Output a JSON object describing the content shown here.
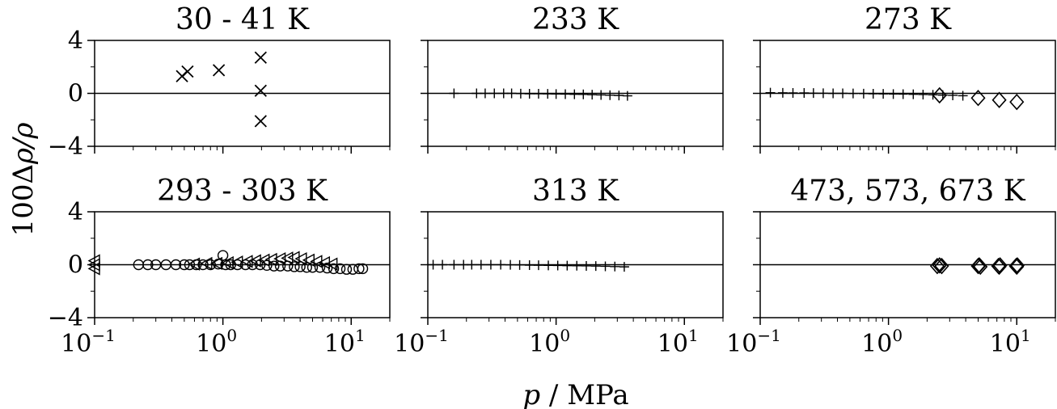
{
  "figure": {
    "xlabel": {
      "symbol": "p",
      "unit": "MPa"
    },
    "ylabel": {
      "prefix": "100Δ",
      "expr": "ρ/ρ"
    }
  },
  "chart_data": [
    {
      "type": "scatter",
      "title": "30 - 41 K",
      "xscale": "log",
      "xlim": [
        0.1,
        20
      ],
      "ylim": [
        -4,
        4
      ],
      "xticks": [
        0.1,
        1,
        10
      ],
      "yticks": [
        4,
        0,
        -4
      ],
      "show_xtick_labels": false,
      "show_ytick_labels": true,
      "zero_line": true,
      "series": [
        {
          "marker": "x",
          "points": [
            [
              0.48,
              1.3
            ],
            [
              0.53,
              1.65
            ],
            [
              0.93,
              1.75
            ],
            [
              1.97,
              2.7
            ],
            [
              1.97,
              0.2
            ],
            [
              1.97,
              -2.1
            ]
          ]
        }
      ]
    },
    {
      "type": "scatter",
      "title": "233 K",
      "xscale": "log",
      "xlim": [
        0.1,
        20
      ],
      "ylim": [
        -4,
        4
      ],
      "xticks": [
        0.1,
        1,
        10
      ],
      "yticks": [
        4,
        0,
        -4
      ],
      "show_xtick_labels": false,
      "show_ytick_labels": false,
      "zero_line": true,
      "series": [
        {
          "marker": "+",
          "points": [
            [
              0.16,
              0.0
            ],
            [
              0.24,
              0.0
            ],
            [
              0.28,
              0.0
            ],
            [
              0.33,
              0.0
            ],
            [
              0.39,
              0.0
            ],
            [
              0.45,
              0.0
            ],
            [
              0.53,
              -0.02
            ],
            [
              0.62,
              -0.03
            ],
            [
              0.73,
              -0.03
            ],
            [
              0.86,
              -0.04
            ],
            [
              1.0,
              -0.05
            ],
            [
              1.18,
              -0.06
            ],
            [
              1.39,
              -0.07
            ],
            [
              1.63,
              -0.08
            ],
            [
              1.91,
              -0.1
            ],
            [
              2.24,
              -0.12
            ],
            [
              2.63,
              -0.14
            ],
            [
              3.09,
              -0.16
            ],
            [
              3.6,
              -0.19
            ]
          ]
        }
      ]
    },
    {
      "type": "scatter",
      "title": "273 K",
      "xscale": "log",
      "xlim": [
        0.1,
        20
      ],
      "ylim": [
        -4,
        4
      ],
      "xticks": [
        0.1,
        1,
        10
      ],
      "yticks": [
        4,
        0,
        -4
      ],
      "show_xtick_labels": false,
      "show_ytick_labels": false,
      "zero_line": true,
      "series": [
        {
          "marker": "+",
          "points": [
            [
              0.12,
              0.05
            ],
            [
              0.15,
              0.04
            ],
            [
              0.18,
              0.03
            ],
            [
              0.22,
              0.03
            ],
            [
              0.26,
              0.02
            ],
            [
              0.31,
              0.01
            ],
            [
              0.37,
              0.0
            ],
            [
              0.44,
              0.0
            ],
            [
              0.53,
              -0.01
            ],
            [
              0.64,
              -0.02
            ],
            [
              0.76,
              -0.03
            ],
            [
              0.91,
              -0.04
            ],
            [
              1.09,
              -0.05
            ],
            [
              1.3,
              -0.06
            ],
            [
              1.56,
              -0.07
            ],
            [
              1.86,
              -0.09
            ],
            [
              2.22,
              -0.11
            ],
            [
              2.65,
              -0.13
            ],
            [
              3.17,
              -0.15
            ],
            [
              3.8,
              -0.18
            ]
          ]
        },
        {
          "marker": "diamond",
          "points": [
            [
              2.5,
              -0.15
            ],
            [
              5.0,
              -0.35
            ],
            [
              7.3,
              -0.5
            ],
            [
              10.0,
              -0.65
            ]
          ]
        }
      ]
    },
    {
      "type": "scatter",
      "title": "293 - 303 K",
      "xscale": "log",
      "xlim": [
        0.1,
        20
      ],
      "ylim": [
        -4,
        4
      ],
      "xticks": [
        0.1,
        1,
        10
      ],
      "yticks": [
        4,
        0,
        -4
      ],
      "show_xtick_labels": true,
      "show_ytick_labels": true,
      "zero_line": true,
      "series": [
        {
          "marker": "circle",
          "points": [
            [
              0.22,
              0.0
            ],
            [
              0.26,
              0.0
            ],
            [
              0.3,
              0.0
            ],
            [
              0.36,
              0.0
            ],
            [
              0.43,
              0.0
            ],
            [
              0.5,
              0.0
            ],
            [
              0.55,
              0.0
            ],
            [
              0.62,
              0.0
            ],
            [
              0.7,
              0.0
            ],
            [
              0.8,
              0.0
            ],
            [
              0.92,
              0.05
            ],
            [
              1.0,
              0.7
            ],
            [
              1.05,
              0.0
            ],
            [
              1.15,
              0.0
            ],
            [
              1.3,
              0.0
            ],
            [
              1.5,
              0.0
            ],
            [
              1.7,
              0.0
            ],
            [
              1.95,
              0.0
            ],
            [
              2.2,
              -0.05
            ],
            [
              2.5,
              -0.1
            ],
            [
              2.8,
              -0.1
            ],
            [
              3.2,
              -0.1
            ],
            [
              3.6,
              -0.15
            ],
            [
              4.0,
              -0.15
            ],
            [
              4.5,
              -0.2
            ],
            [
              5.0,
              -0.2
            ],
            [
              5.7,
              -0.2
            ],
            [
              6.5,
              -0.25
            ],
            [
              7.3,
              -0.3
            ],
            [
              8.2,
              -0.3
            ],
            [
              9.2,
              -0.35
            ],
            [
              10.3,
              -0.35
            ],
            [
              11.5,
              -0.3
            ],
            [
              12.3,
              -0.3
            ]
          ]
        },
        {
          "marker": "triangle-left",
          "points": [
            [
              0.1,
              0.3
            ],
            [
              0.1,
              0.0
            ],
            [
              0.1,
              -0.3
            ],
            [
              0.6,
              0.05
            ],
            [
              0.75,
              0.1
            ],
            [
              0.9,
              0.1
            ],
            [
              1.1,
              0.15
            ],
            [
              1.3,
              0.2
            ],
            [
              1.55,
              0.25
            ],
            [
              1.8,
              0.3
            ],
            [
              2.1,
              0.35
            ],
            [
              2.4,
              0.4
            ],
            [
              2.8,
              0.45
            ],
            [
              3.2,
              0.5
            ],
            [
              3.6,
              0.55
            ],
            [
              4.1,
              0.45
            ],
            [
              4.7,
              0.35
            ],
            [
              5.4,
              0.25
            ],
            [
              6.2,
              0.15
            ],
            [
              7.1,
              0.05
            ]
          ]
        }
      ]
    },
    {
      "type": "scatter",
      "title": "313 K",
      "xscale": "log",
      "xlim": [
        0.1,
        20
      ],
      "ylim": [
        -4,
        4
      ],
      "xticks": [
        0.1,
        1,
        10
      ],
      "yticks": [
        4,
        0,
        -4
      ],
      "show_xtick_labels": true,
      "show_ytick_labels": false,
      "zero_line": true,
      "series": [
        {
          "marker": "+",
          "points": [
            [
              0.11,
              0.0
            ],
            [
              0.13,
              0.0
            ],
            [
              0.16,
              0.0
            ],
            [
              0.19,
              0.0
            ],
            [
              0.22,
              0.0
            ],
            [
              0.26,
              0.0
            ],
            [
              0.31,
              0.0
            ],
            [
              0.37,
              0.0
            ],
            [
              0.44,
              -0.01
            ],
            [
              0.52,
              -0.02
            ],
            [
              0.62,
              -0.03
            ],
            [
              0.73,
              -0.04
            ],
            [
              0.87,
              -0.05
            ],
            [
              1.03,
              -0.06
            ],
            [
              1.22,
              -0.07
            ],
            [
              1.45,
              -0.08
            ],
            [
              1.72,
              -0.09
            ],
            [
              2.04,
              -0.1
            ],
            [
              2.42,
              -0.12
            ],
            [
              2.87,
              -0.14
            ],
            [
              3.4,
              -0.16
            ]
          ]
        }
      ]
    },
    {
      "type": "scatter",
      "title": "473, 573, 673 K",
      "xscale": "log",
      "xlim": [
        0.1,
        20
      ],
      "ylim": [
        -4,
        4
      ],
      "xticks": [
        0.1,
        1,
        10
      ],
      "yticks": [
        4,
        0,
        -4
      ],
      "show_xtick_labels": true,
      "show_ytick_labels": false,
      "zero_line": true,
      "series": [
        {
          "marker": "diamond",
          "points": [
            [
              2.4,
              -0.1
            ],
            [
              2.5,
              -0.05
            ],
            [
              2.6,
              -0.1
            ],
            [
              5.0,
              -0.1
            ],
            [
              5.1,
              -0.05
            ],
            [
              5.2,
              -0.15
            ],
            [
              7.2,
              -0.1
            ],
            [
              7.3,
              -0.15
            ],
            [
              7.4,
              -0.05
            ],
            [
              9.9,
              -0.1
            ],
            [
              10.0,
              -0.15
            ],
            [
              10.1,
              -0.05
            ]
          ]
        }
      ]
    }
  ]
}
